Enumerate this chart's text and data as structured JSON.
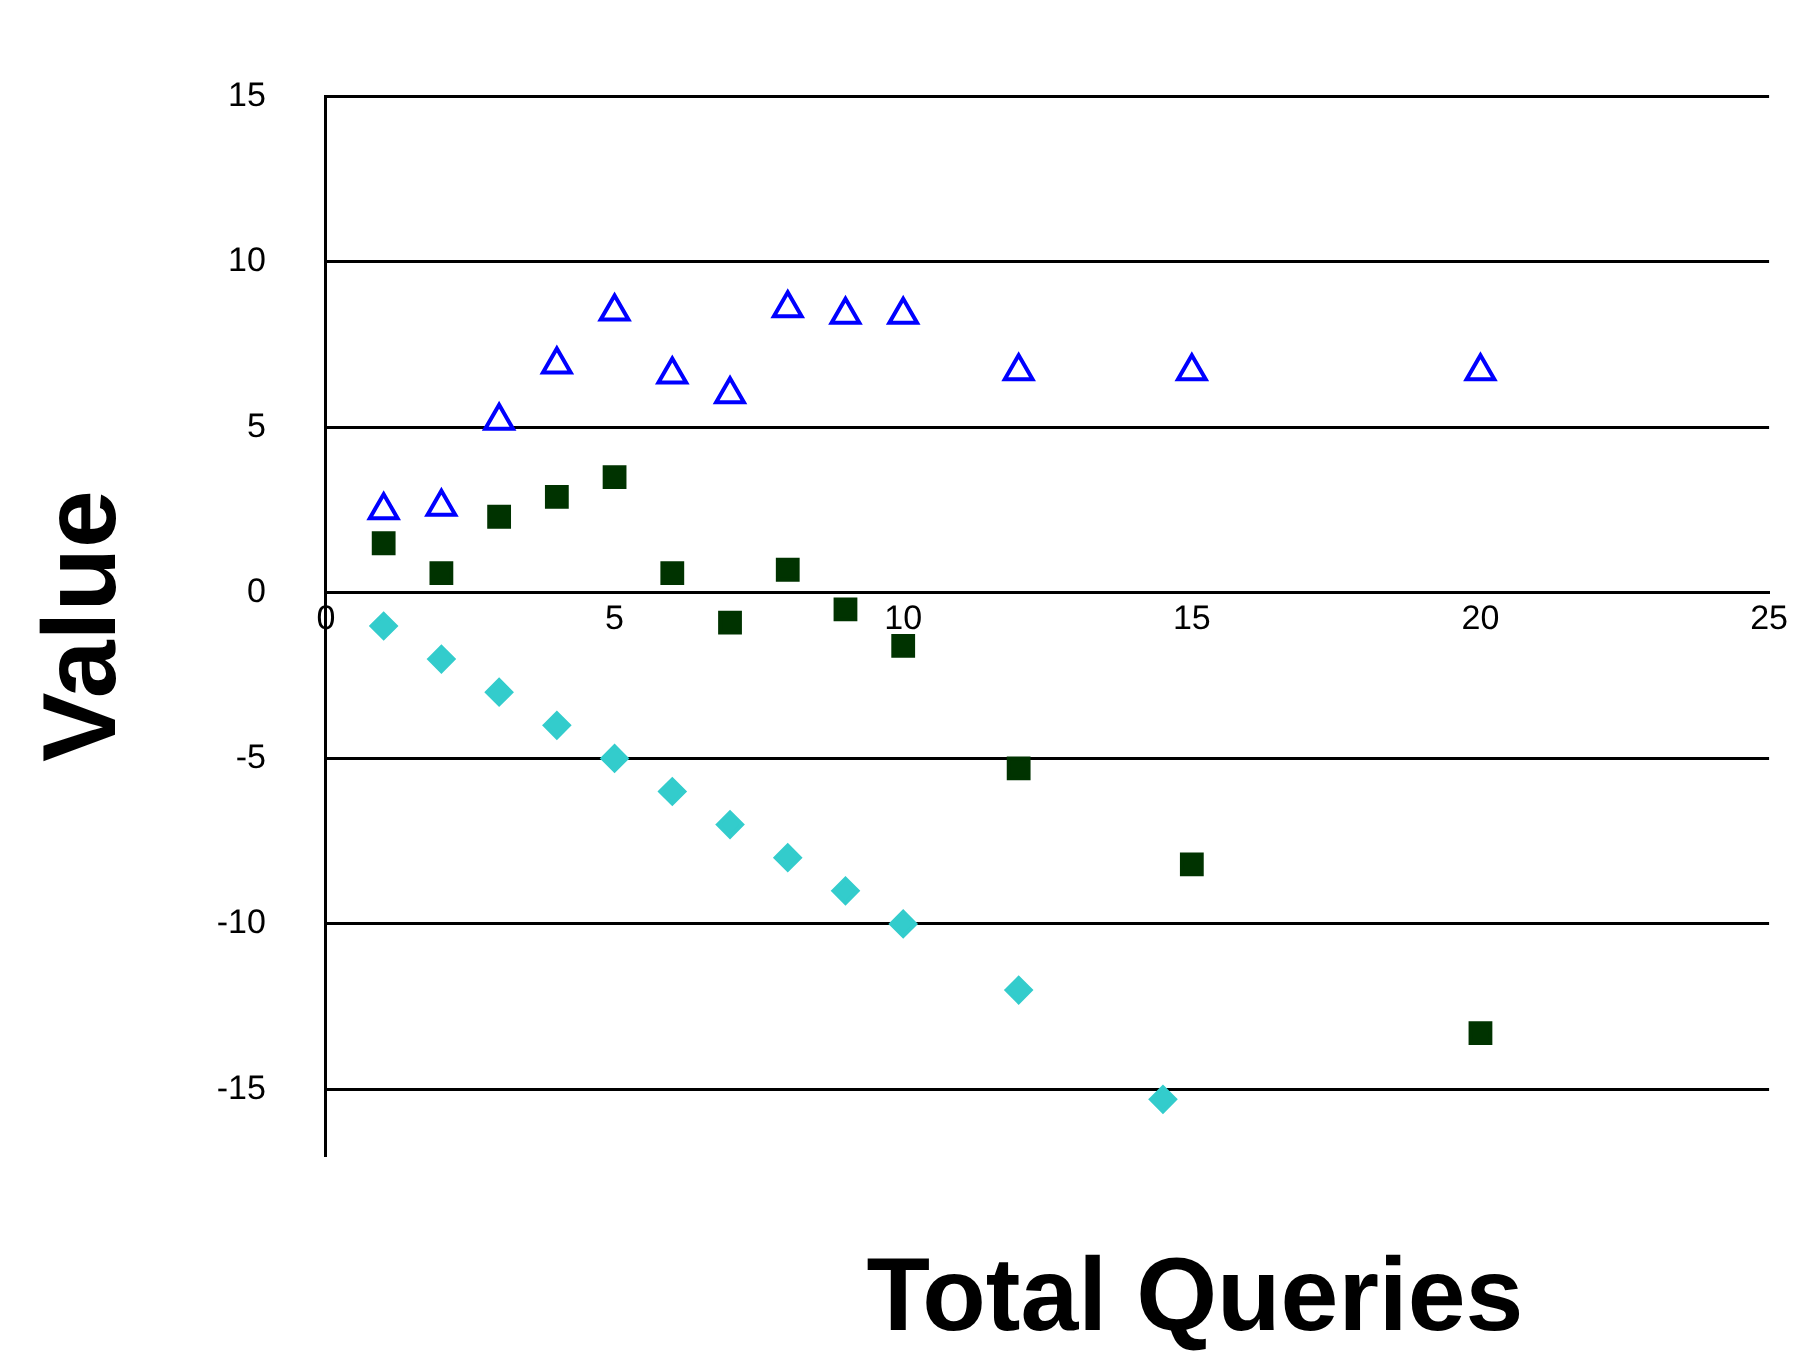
{
  "chart_data": {
    "type": "scatter",
    "xlabel": "Total Queries",
    "ylabel": "Value",
    "xlim": [
      0,
      25
    ],
    "xticks": [
      0,
      5,
      10,
      15,
      20,
      25
    ],
    "ylim": [
      -17,
      15
    ],
    "yticks": [
      -15,
      -10,
      -5,
      0,
      5,
      10,
      15
    ],
    "grid": "y",
    "legend": false,
    "series": [
      {
        "color": "#0000ff",
        "marker": "triangle",
        "x": [
          1,
          2,
          3,
          4,
          5,
          6,
          7,
          8,
          9,
          10,
          12,
          15,
          20
        ],
        "values": [
          2.5,
          2.6,
          5.2,
          6.9,
          8.5,
          6.6,
          6.0,
          8.6,
          8.4,
          8.4,
          6.7,
          6.7,
          6.7
        ]
      },
      {
        "color": "#003300",
        "marker": "square",
        "x": [
          1,
          2,
          3,
          4,
          5,
          6,
          7,
          8,
          9,
          10,
          12,
          15,
          20
        ],
        "values": [
          1.5,
          0.6,
          2.3,
          2.9,
          3.5,
          0.6,
          -0.9,
          0.7,
          -0.5,
          -1.6,
          -5.3,
          -8.2,
          -13.3
        ]
      },
      {
        "color": "#33cccc",
        "marker": "diamond",
        "x": [
          1,
          2,
          3,
          4,
          5,
          6,
          7,
          8,
          9,
          10,
          12,
          14.5
        ],
        "values": [
          -1,
          -2,
          -3,
          -4,
          -5,
          -6,
          -7,
          -8,
          -9,
          -10,
          -12,
          -15.3
        ]
      }
    ]
  }
}
